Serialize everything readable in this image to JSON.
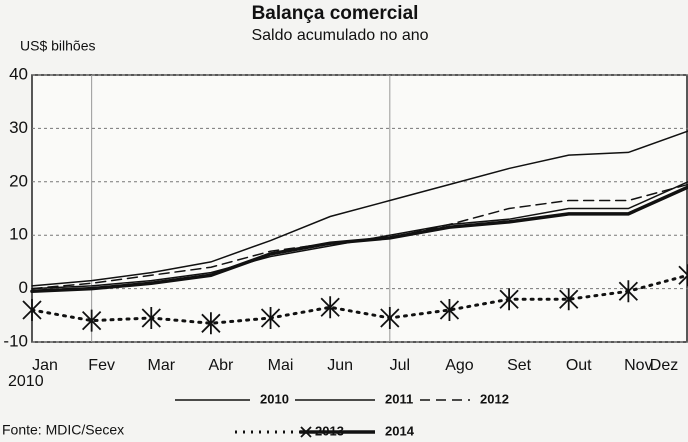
{
  "chart_data": {
    "type": "line",
    "title": "Balança comercial",
    "subtitle": "Saldo acumulado no ano",
    "y_label": "US$ bilhões",
    "year_label": "2010",
    "source": "Fonte: MDIC/Secex",
    "categories": [
      "Jan",
      "Fev",
      "Mar",
      "Abr",
      "Mai",
      "Jun",
      "Jul",
      "Ago",
      "Set",
      "Out",
      "Nov",
      "Dez"
    ],
    "series": [
      {
        "name": "2010",
        "color": "#111111",
        "style": "thin",
        "values": [
          0,
          0.5,
          1.5,
          3,
          6,
          8,
          10,
          12,
          13,
          15,
          15,
          20
        ]
      },
      {
        "name": "2011",
        "color": "#111111",
        "style": "thin",
        "values": [
          0.5,
          1.5,
          3,
          5,
          9,
          13.5,
          16.5,
          19.5,
          22.5,
          25,
          25.5,
          29.5
        ]
      },
      {
        "name": "2012",
        "color": "#111111",
        "style": "dashed",
        "values": [
          0,
          1,
          2.5,
          4,
          7,
          8.5,
          9.5,
          12,
          15,
          16.5,
          16.5,
          19.5
        ]
      },
      {
        "name": "2013",
        "color": "#111111",
        "style": "dotted",
        "values": [
          -4,
          -6,
          -5.5,
          -6.5,
          -5.5,
          -3.5,
          -5.5,
          -4,
          -2,
          -2,
          -0.5,
          2.5
        ]
      },
      {
        "name": "2014",
        "color": "#111111",
        "style": "thick",
        "values": [
          -0.5,
          0,
          1,
          2.5,
          6.5,
          8.5,
          9.5,
          11.5,
          12.5,
          14,
          14,
          19
        ]
      }
    ],
    "ylim": [
      -10,
      40
    ],
    "yticks": [
      -10,
      0,
      10,
      20,
      30,
      40
    ],
    "grid": true
  }
}
